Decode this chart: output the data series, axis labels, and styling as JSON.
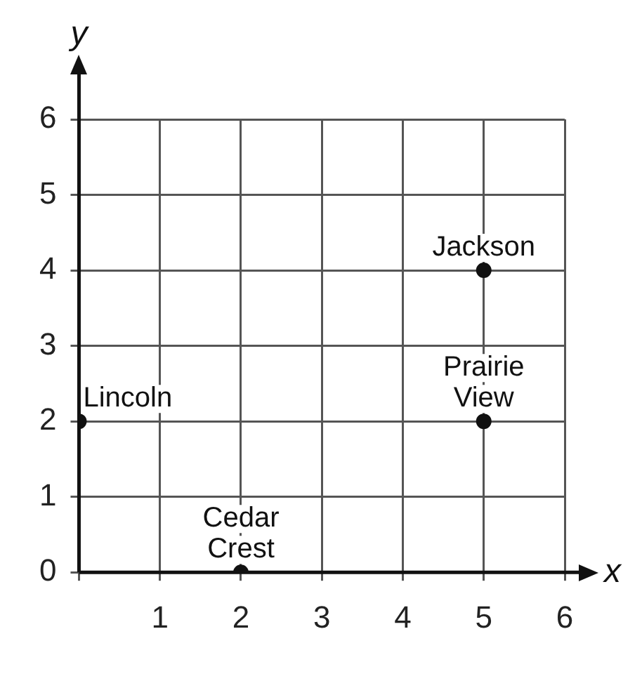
{
  "chart_data": {
    "type": "scatter",
    "xlabel": "x",
    "ylabel": "y",
    "x": [
      0,
      2,
      5,
      5
    ],
    "values": [
      2,
      0,
      4,
      2
    ],
    "color": "#111111",
    "marker": "circle",
    "xlim": [
      0,
      6
    ],
    "ylim": [
      0,
      6
    ],
    "xticks": [
      {
        "value": 0,
        "label": null
      },
      1,
      2,
      3,
      4,
      5,
      6
    ],
    "yticks": [
      0,
      1,
      2,
      3,
      4,
      5,
      6
    ],
    "grid": true,
    "annotations": [
      {
        "text": "Lincoln",
        "x": 0,
        "y": 2
      },
      {
        "text": "Cedar Crest",
        "x": 2,
        "y": 0
      },
      {
        "text": "Jackson",
        "x": 5,
        "y": 4
      },
      {
        "text": "Prairie View",
        "x": 5,
        "y": 2
      }
    ]
  }
}
